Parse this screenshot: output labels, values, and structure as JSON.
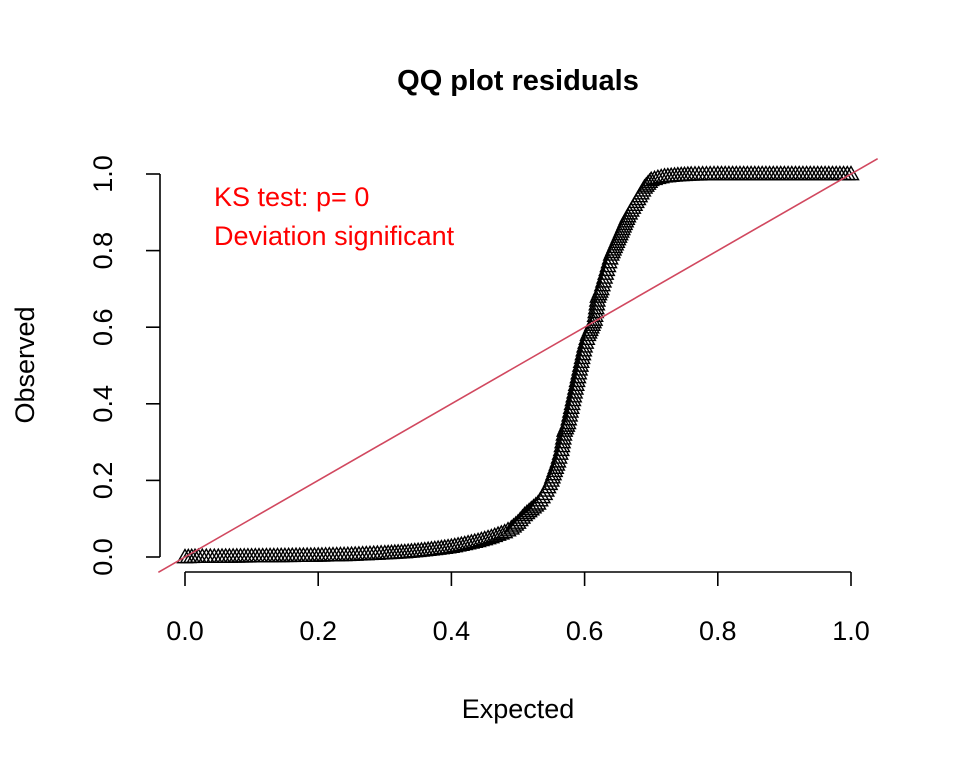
{
  "chart_data": {
    "type": "scatter",
    "title": "QQ plot residuals",
    "xlabel": "Expected",
    "ylabel": "Observed",
    "xlim": [
      0,
      1
    ],
    "ylim": [
      0,
      1
    ],
    "xticks": [
      "0.0",
      "0.2",
      "0.4",
      "0.6",
      "0.8",
      "1.0"
    ],
    "yticks": [
      "0.0",
      "0.2",
      "0.4",
      "0.6",
      "0.8",
      "1.0"
    ],
    "grid": false,
    "marker": "open-triangle",
    "marker_color": "#000000",
    "reference_line": {
      "slope": 1,
      "intercept": 0,
      "color": "#d1485f"
    },
    "annotations": {
      "ks_test": "KS test: p= 0",
      "deviation": "Deviation  significant",
      "color": "#ff0000"
    },
    "points": [
      [
        0.0,
        0.0
      ],
      [
        0.02,
        0.001
      ],
      [
        0.05,
        0.001
      ],
      [
        0.1,
        0.002
      ],
      [
        0.15,
        0.003
      ],
      [
        0.2,
        0.004
      ],
      [
        0.25,
        0.006
      ],
      [
        0.3,
        0.01
      ],
      [
        0.33,
        0.013
      ],
      [
        0.36,
        0.018
      ],
      [
        0.38,
        0.022
      ],
      [
        0.4,
        0.027
      ],
      [
        0.42,
        0.034
      ],
      [
        0.44,
        0.042
      ],
      [
        0.46,
        0.052
      ],
      [
        0.48,
        0.065
      ],
      [
        0.49,
        0.075
      ],
      [
        0.5,
        0.09
      ],
      [
        0.51,
        0.11
      ],
      [
        0.52,
        0.125
      ],
      [
        0.53,
        0.14
      ],
      [
        0.54,
        0.165
      ],
      [
        0.55,
        0.2
      ],
      [
        0.56,
        0.25
      ],
      [
        0.565,
        0.28
      ],
      [
        0.57,
        0.33
      ],
      [
        0.575,
        0.35
      ],
      [
        0.58,
        0.39
      ],
      [
        0.585,
        0.43
      ],
      [
        0.59,
        0.47
      ],
      [
        0.595,
        0.51
      ],
      [
        0.6,
        0.55
      ],
      [
        0.605,
        0.58
      ],
      [
        0.61,
        0.6
      ],
      [
        0.615,
        0.62
      ],
      [
        0.62,
        0.68
      ],
      [
        0.625,
        0.7
      ],
      [
        0.63,
        0.73
      ],
      [
        0.635,
        0.76
      ],
      [
        0.64,
        0.79
      ],
      [
        0.645,
        0.81
      ],
      [
        0.65,
        0.83
      ],
      [
        0.655,
        0.85
      ],
      [
        0.66,
        0.87
      ],
      [
        0.665,
        0.89
      ],
      [
        0.67,
        0.905
      ],
      [
        0.675,
        0.92
      ],
      [
        0.68,
        0.935
      ],
      [
        0.685,
        0.95
      ],
      [
        0.69,
        0.965
      ],
      [
        0.695,
        0.975
      ],
      [
        0.7,
        0.985
      ],
      [
        0.71,
        0.99
      ],
      [
        0.72,
        0.994
      ],
      [
        0.74,
        0.997
      ],
      [
        0.76,
        0.999
      ],
      [
        0.8,
        1.0
      ],
      [
        0.85,
        1.0
      ],
      [
        0.9,
        1.0
      ],
      [
        0.95,
        1.0
      ],
      [
        1.0,
        1.0
      ]
    ]
  }
}
